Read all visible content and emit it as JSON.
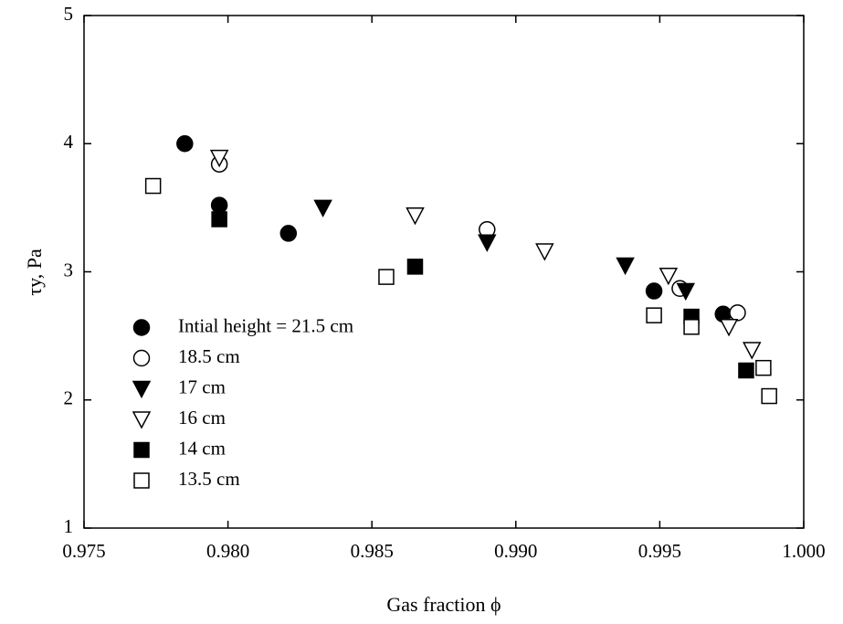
{
  "chart_data": {
    "type": "scatter",
    "xlabel": "Gas fraction ϕ",
    "ylabel": "τy, Pa",
    "xlim": [
      0.975,
      1.0
    ],
    "ylim": [
      1,
      5
    ],
    "xticks": [
      0.975,
      {
        "value": 0.98,
        "label": "0.980"
      },
      0.985,
      {
        "value": 0.99,
        "label": "0.990"
      },
      0.995,
      {
        "value": 1.0,
        "label": "1.000"
      }
    ],
    "yticks": [
      1,
      2,
      3,
      4,
      5
    ],
    "legend": "lower left",
    "series": [
      {
        "name": "Intial height = 21.5 cm",
        "color": "#000000",
        "marker": "circle",
        "filled": true,
        "x": [
          0.9785,
          0.9797,
          0.9821,
          0.9948,
          0.9972
        ],
        "y": [
          4.0,
          3.52,
          3.3,
          2.85,
          2.67
        ]
      },
      {
        "name": "18.5 cm",
        "color": "#000000",
        "marker": "circle",
        "filled": false,
        "x": [
          0.9797,
          0.989,
          0.9957,
          0.9977
        ],
        "y": [
          3.84,
          3.33,
          2.87,
          2.68
        ]
      },
      {
        "name": "17 cm",
        "color": "#000000",
        "marker": "triangle-down",
        "filled": true,
        "x": [
          0.9833,
          0.989,
          0.9938,
          0.9959
        ],
        "y": [
          3.5,
          3.23,
          3.05,
          2.85
        ]
      },
      {
        "name": "16 cm",
        "color": "#000000",
        "marker": "triangle-down",
        "filled": false,
        "x": [
          0.9797,
          0.9865,
          0.991,
          0.9953,
          0.9974,
          0.9982
        ],
        "y": [
          3.89,
          3.44,
          3.16,
          2.97,
          2.57,
          2.39
        ]
      },
      {
        "name": "14 cm",
        "color": "#000000",
        "marker": "square",
        "filled": true,
        "x": [
          0.9797,
          0.9865,
          0.9961,
          0.998
        ],
        "y": [
          3.41,
          3.04,
          2.65,
          2.23
        ]
      },
      {
        "name": "13.5 cm",
        "color": "#000000",
        "marker": "square",
        "filled": false,
        "x": [
          0.9774,
          0.9855,
          0.9948,
          0.9961,
          0.9986,
          0.9988
        ],
        "y": [
          3.67,
          2.96,
          2.66,
          2.57,
          2.25,
          2.03
        ]
      }
    ]
  }
}
